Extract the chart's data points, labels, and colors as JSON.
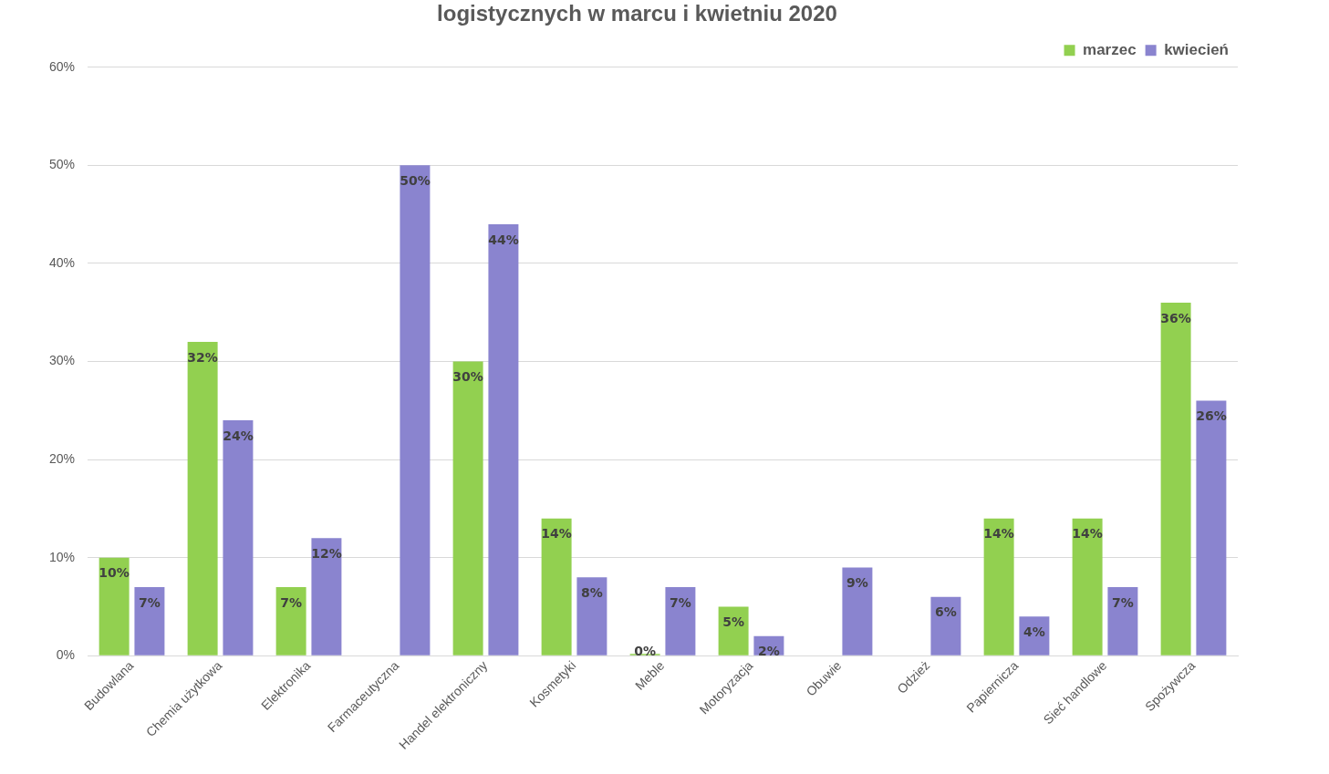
{
  "chart_data": {
    "type": "bar",
    "title": "logistycznych w marcu i kwietniu 2020",
    "categories": [
      "Budowlana",
      "Chemia użytkowa",
      "Elektronika",
      "Farmaceutyczna",
      "Handel elektroniczny",
      "Kosmetyki",
      "Meble",
      "Motoryzacja",
      "Obuwie",
      "Odzież",
      "Papiernicza",
      "Sieć handlowe",
      "Spożywcza"
    ],
    "series": [
      {
        "name": "marzec",
        "color": "#92d050",
        "values": [
          10,
          32,
          7,
          null,
          30,
          14,
          0,
          5,
          null,
          null,
          14,
          14,
          36
        ],
        "value_labels": [
          "10%",
          "32%",
          "7%",
          null,
          "30%",
          "14%",
          "0%",
          "5%",
          null,
          null,
          "14%",
          "14%",
          "36%"
        ]
      },
      {
        "name": "kwiecień",
        "color": "#8a84cf",
        "values": [
          7,
          24,
          12,
          50,
          44,
          8,
          7,
          2,
          9,
          6,
          4,
          7,
          26
        ],
        "value_labels": [
          "7%",
          "24%",
          "12%",
          "50%",
          "44%",
          "8%",
          "7%",
          "2%",
          "9%",
          "6%",
          "4%",
          "7%",
          "26%"
        ]
      }
    ],
    "ylim": [
      0,
      60
    ],
    "yticks": [
      {
        "value": 0,
        "label": "0%"
      },
      {
        "value": 10,
        "label": "10%"
      },
      {
        "value": 20,
        "label": "20%"
      },
      {
        "value": 30,
        "label": "30%"
      },
      {
        "value": 40,
        "label": "40%"
      },
      {
        "value": 50,
        "label": "50%"
      },
      {
        "value": 60,
        "label": "60%"
      }
    ],
    "grid": "y",
    "legend": "top right"
  }
}
